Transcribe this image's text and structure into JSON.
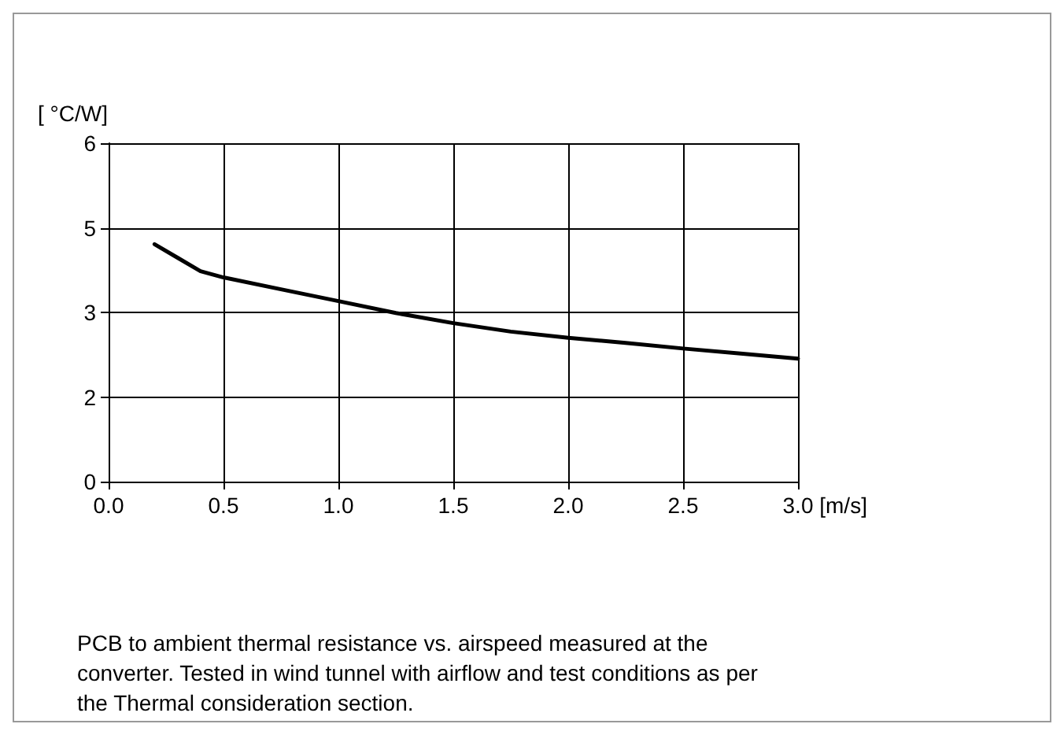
{
  "chart_data": {
    "type": "line",
    "xlabel": "[m/s]",
    "ylabel": "[ °C/W]",
    "x": [
      0.2,
      0.3,
      0.4,
      0.5,
      0.75,
      1.0,
      1.25,
      1.5,
      1.75,
      2.0,
      2.25,
      2.5,
      2.75,
      3.0
    ],
    "series": [
      {
        "color": "#000000",
        "values": [
          4.21,
          3.97,
          3.73,
          3.62,
          3.41,
          3.2,
          2.99,
          2.81,
          2.66,
          2.55,
          2.46,
          2.36,
          2.27,
          2.18
        ]
      }
    ],
    "xlim": [
      0,
      3
    ],
    "xticks": [
      {
        "value": 0,
        "label": "0.0"
      },
      {
        "value": 0.5,
        "label": "0.5"
      },
      {
        "value": 1,
        "label": "1.0"
      },
      {
        "value": 1.5,
        "label": "1.5"
      },
      {
        "value": 2,
        "label": "2.0"
      },
      {
        "value": 2.5,
        "label": "2.5"
      },
      {
        "value": 3,
        "label": "3.0"
      }
    ],
    "ylim": [
      0,
      6
    ],
    "yticks": [
      0,
      {
        "value": 1.5,
        "label": "2"
      },
      3,
      {
        "value": 4.5,
        "label": "5"
      },
      6
    ],
    "grid": true,
    "marker": "none",
    "line_style": "solid",
    "annotations": [
      "PCB to ambient thermal resistance vs. airspeed measured at the converter. Tested in wind tunnel with airflow and test conditions as per the Thermal consideration section."
    ]
  }
}
